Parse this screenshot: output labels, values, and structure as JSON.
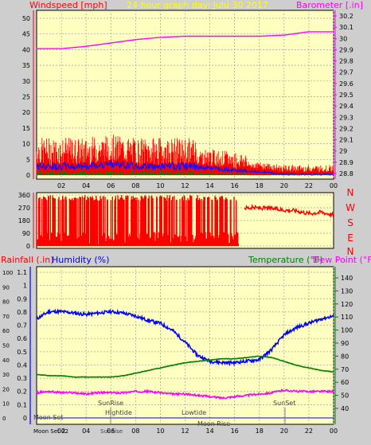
{
  "title": "24 hour graph day:  Julu 30 2017",
  "top_panel": {
    "left_label": "Windspeed [mph]",
    "right_label": "Barometer [.in]"
  },
  "bottom_panel": {
    "left_label_rain": "Rainfall (.in)",
    "left_label_hum": "Humidity (%)",
    "right_label_temp": "Temperature (°F)",
    "right_label_dew": "Dew Point (°F)"
  },
  "colors": {
    "panel_bg": "#ffffc0",
    "wind_avg": "#1010ff",
    "wind_gust": "#ff0000",
    "wind_low": "#008000",
    "barometer": "#ff00ff",
    "temperature": "#008000",
    "dewpoint": "#ff00ff",
    "humidity": "#0000ff",
    "rain": "#0000ff",
    "label_red": "#ff0000",
    "label_green": "#008000"
  },
  "chart_data": [
    {
      "type": "line",
      "x_ticks": [
        "02",
        "04",
        "06",
        "08",
        "10",
        "12",
        "14",
        "16",
        "18",
        "20",
        "22",
        "00"
      ],
      "y_left_ticks": [
        "0",
        "5",
        "10",
        "15",
        "20",
        "25",
        "30",
        "35",
        "40",
        "45",
        "50"
      ],
      "y_left_range": [
        0,
        50
      ],
      "y_right_ticks": [
        "28.8",
        "28.9",
        "29",
        "29.1",
        "29.2",
        "29.3",
        "29.4",
        "29.5",
        "29.6",
        "29.7",
        "29.8",
        "29.9",
        "30",
        "30.1",
        "30.2"
      ],
      "y_right_range": [
        28.75,
        30.25
      ],
      "grid": true,
      "series": [
        {
          "name": "Windspeed [mph]",
          "x": [
            0,
            2,
            4,
            6,
            8,
            10,
            12,
            14,
            16,
            18,
            20,
            22,
            24
          ],
          "values": [
            2,
            2,
            2,
            3,
            2,
            2,
            2,
            2,
            1,
            1,
            0,
            0,
            0
          ]
        },
        {
          "name": "Barometer [.in]",
          "x": [
            0,
            2,
            4,
            6,
            8,
            10,
            12,
            14,
            16,
            18,
            20,
            22,
            24
          ],
          "values": [
            29.91,
            29.91,
            29.93,
            29.96,
            29.99,
            30.01,
            30.02,
            30.02,
            30.02,
            30.02,
            30.03,
            30.06,
            30.06
          ]
        }
      ]
    },
    {
      "type": "line",
      "y_left_ticks": [
        "0",
        "90",
        "180",
        "270",
        "360"
      ],
      "y_left_range": [
        0,
        360
      ],
      "y_right_ticks": [
        "N",
        "W",
        "S",
        "E",
        "N"
      ],
      "series": [
        {
          "name": "Wind direction",
          "x": [
            17,
            18,
            19,
            20,
            21,
            22,
            23,
            24
          ],
          "values": [
            270,
            270,
            265,
            255,
            250,
            230,
            240,
            220
          ]
        }
      ]
    },
    {
      "type": "line",
      "x_ticks": [
        "02",
        "04",
        "06",
        "08",
        "10",
        "12",
        "14",
        "16",
        "18",
        "20",
        "22",
        "00"
      ],
      "y_left_ticks": [
        "0",
        "0.1",
        "0.2",
        "0.3",
        "0.4",
        "0.5",
        "0.6",
        "0.7",
        "0.8",
        "0.9",
        "1",
        "1.1"
      ],
      "y_left_range": [
        0,
        1.1
      ],
      "y_left_outer_ticks": [
        "0",
        "10",
        "20",
        "30",
        "40",
        "50",
        "60",
        "70",
        "80",
        "90",
        "100"
      ],
      "y_right_ticks": [
        "40",
        "50",
        "60",
        "70",
        "80",
        "90",
        "100",
        "110",
        "120",
        "130",
        "140"
      ],
      "y_right_range": [
        32,
        145
      ],
      "grid": true,
      "annotations": [
        "Moon Set",
        "SunRise",
        "Hightide",
        "Lowtide",
        "Moon Rise",
        "SunSet"
      ],
      "x_label_overlays": [
        "Moon Set 02",
        "SunRise"
      ],
      "series": [
        {
          "name": "Humidity (%)",
          "x": [
            0,
            1,
            2,
            3,
            4,
            5,
            6,
            7,
            8,
            9,
            10,
            11,
            12,
            13,
            14,
            15,
            16,
            17,
            18,
            19,
            20,
            21,
            22,
            23,
            24
          ],
          "values": [
            68,
            73,
            73,
            72,
            71,
            72,
            73,
            72,
            70,
            67,
            65,
            60,
            52,
            43,
            39,
            38,
            38,
            39,
            40,
            47,
            57,
            62,
            65,
            68,
            70
          ]
        },
        {
          "name": "Temperature (°F)",
          "x": [
            0,
            1,
            2,
            3,
            4,
            5,
            6,
            7,
            8,
            9,
            10,
            11,
            12,
            13,
            14,
            15,
            16,
            17,
            18,
            19,
            20,
            21,
            22,
            23,
            24
          ],
          "values": [
            66,
            65,
            65,
            64,
            64,
            64,
            64,
            65,
            67,
            69,
            71,
            73,
            75,
            76,
            77,
            78,
            78,
            79,
            80,
            79,
            76,
            73,
            71,
            69,
            68
          ]
        },
        {
          "name": "Dew Point (°F)",
          "x": [
            0,
            1,
            2,
            3,
            4,
            5,
            6,
            7,
            8,
            9,
            10,
            11,
            12,
            13,
            14,
            15,
            16,
            17,
            18,
            19,
            20,
            21,
            22,
            23,
            24
          ],
          "values": [
            52,
            53,
            52,
            52,
            51,
            52,
            52,
            52,
            53,
            53,
            52,
            51,
            51,
            50,
            49,
            48,
            49,
            50,
            51,
            52,
            54,
            53,
            53,
            53,
            53
          ]
        },
        {
          "name": "Rainfall (.in)",
          "x": [
            0,
            24
          ],
          "values": [
            0,
            0
          ]
        }
      ]
    }
  ]
}
